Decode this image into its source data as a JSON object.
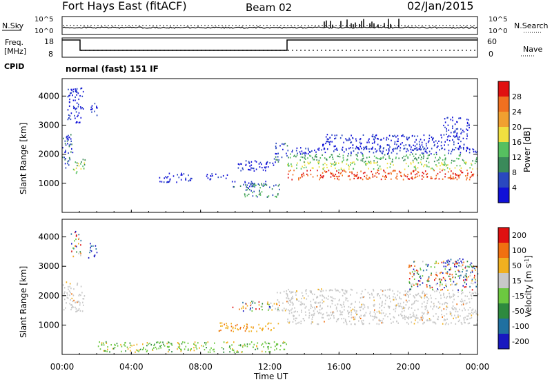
{
  "header": {
    "radar": "Fort Hays East (fitACF)",
    "beam": "Beam 02",
    "date": "02/Jan/2015"
  },
  "top_panels": {
    "nsky_label": "N.Sky",
    "nsearch_label": "N.Search",
    "freq_label_1": "Freq.",
    "freq_label_2": "[MHz]",
    "nave_label": "Nave",
    "cpid_label": "CPID",
    "noise_ticks": [
      "10^5",
      "10^0"
    ],
    "freq_ticks": [
      "18",
      "8"
    ],
    "nave_ticks": [
      "60",
      "0"
    ],
    "cpid_text": "normal (fast) 151 IF"
  },
  "xaxis": {
    "ticks": [
      "00:00",
      "04:00",
      "08:00",
      "12:00",
      "16:00",
      "20:00",
      "00:00"
    ],
    "label": "Time UT"
  },
  "chart_data": [
    {
      "type": "heatmap",
      "title": "",
      "xlabel": "Time UT",
      "ylabel": "Slant Range [km]",
      "xlim": [
        0,
        24
      ],
      "ylim": [
        0,
        4600
      ],
      "yticks": [
        "1000",
        "2000",
        "3000",
        "4000"
      ],
      "colorbar": {
        "label": "Power [dB]",
        "ticks": [
          "4",
          "8",
          "12",
          "16",
          "20",
          "24",
          "28"
        ],
        "colors": [
          "#1010d8",
          "#2a48c0",
          "#3a8a5a",
          "#56c060",
          "#f0e040",
          "#f0a030",
          "#f07020",
          "#e01010"
        ]
      },
      "regions": [
        {
          "t0": 0.0,
          "t1": 0.6,
          "r0": 1550,
          "r1": 2700,
          "level": 2
        },
        {
          "t0": 0.6,
          "t1": 1.3,
          "r0": 1350,
          "r1": 1950,
          "level": 4
        },
        {
          "t0": 0.3,
          "t1": 1.2,
          "r0": 3100,
          "r1": 4300,
          "level": 1
        },
        {
          "t0": 1.6,
          "t1": 2.0,
          "r0": 3300,
          "r1": 3800,
          "level": 1
        },
        {
          "t0": 5.6,
          "t1": 7.5,
          "r0": 1050,
          "r1": 1400,
          "level": 1
        },
        {
          "t0": 8.3,
          "t1": 9.6,
          "r0": 1150,
          "r1": 1350,
          "level": 1
        },
        {
          "t0": 9.8,
          "t1": 11.8,
          "r0": 850,
          "r1": 1100,
          "level": 2
        },
        {
          "t0": 10.5,
          "t1": 12.6,
          "r0": 550,
          "r1": 1000,
          "level": 3
        },
        {
          "t0": 10.0,
          "t1": 12.2,
          "r0": 1450,
          "r1": 1800,
          "level": 1
        },
        {
          "t0": 12.2,
          "t1": 13.0,
          "r0": 1750,
          "r1": 2400,
          "level": 2
        },
        {
          "t0": 13.0,
          "t1": 24.0,
          "r0": 1150,
          "r1": 2250,
          "level": 5
        },
        {
          "t0": 15.0,
          "t1": 23.5,
          "r0": 2200,
          "r1": 2700,
          "level": 1
        },
        {
          "t0": 22.0,
          "t1": 23.5,
          "r0": 2700,
          "r1": 3300,
          "level": 1
        }
      ]
    },
    {
      "type": "heatmap",
      "title": "",
      "xlabel": "Time UT",
      "ylabel": "Slant Range [km]",
      "xlim": [
        0,
        24
      ],
      "ylim": [
        0,
        4600
      ],
      "yticks": [
        "1000",
        "2000",
        "3000",
        "4000"
      ],
      "colorbar": {
        "label": "Velocity [m s^-1]",
        "ticks": [
          "200",
          "100",
          "50",
          "15",
          "-15",
          "-50",
          "-100",
          "-200"
        ],
        "colors": [
          "#1818c0",
          "#2070a0",
          "#2e8a3e",
          "#6cc840",
          "#c8c8c8",
          "#f0b020",
          "#f07010",
          "#e01010"
        ]
      },
      "regions": [
        {
          "t0": 0.0,
          "t1": 1.3,
          "r0": 1450,
          "r1": 2500,
          "color": "ground"
        },
        {
          "t0": 0.5,
          "t1": 1.1,
          "r0": 3300,
          "r1": 4300,
          "color": "mixed"
        },
        {
          "t0": 1.5,
          "t1": 2.0,
          "r0": 3300,
          "r1": 3800,
          "color": "blue"
        },
        {
          "t0": 9.0,
          "t1": 12.6,
          "r0": 800,
          "r1": 1100,
          "color": "orange"
        },
        {
          "t0": 9.8,
          "t1": 12.5,
          "r0": 1500,
          "r1": 1850,
          "color": "mixed"
        },
        {
          "t0": 2.0,
          "t1": 13.0,
          "r0": 100,
          "r1": 450,
          "color": "green"
        },
        {
          "t0": 12.3,
          "t1": 13.0,
          "r0": 1500,
          "r1": 2200,
          "color": "ground"
        },
        {
          "t0": 13.0,
          "t1": 24.0,
          "r0": 1050,
          "r1": 2250,
          "color": "ground"
        },
        {
          "t0": 20.0,
          "t1": 24.0,
          "r0": 2200,
          "r1": 3200,
          "color": "mixed"
        },
        {
          "t0": 22.0,
          "t1": 23.3,
          "r0": 3000,
          "r1": 3300,
          "color": "blue"
        }
      ]
    }
  ]
}
